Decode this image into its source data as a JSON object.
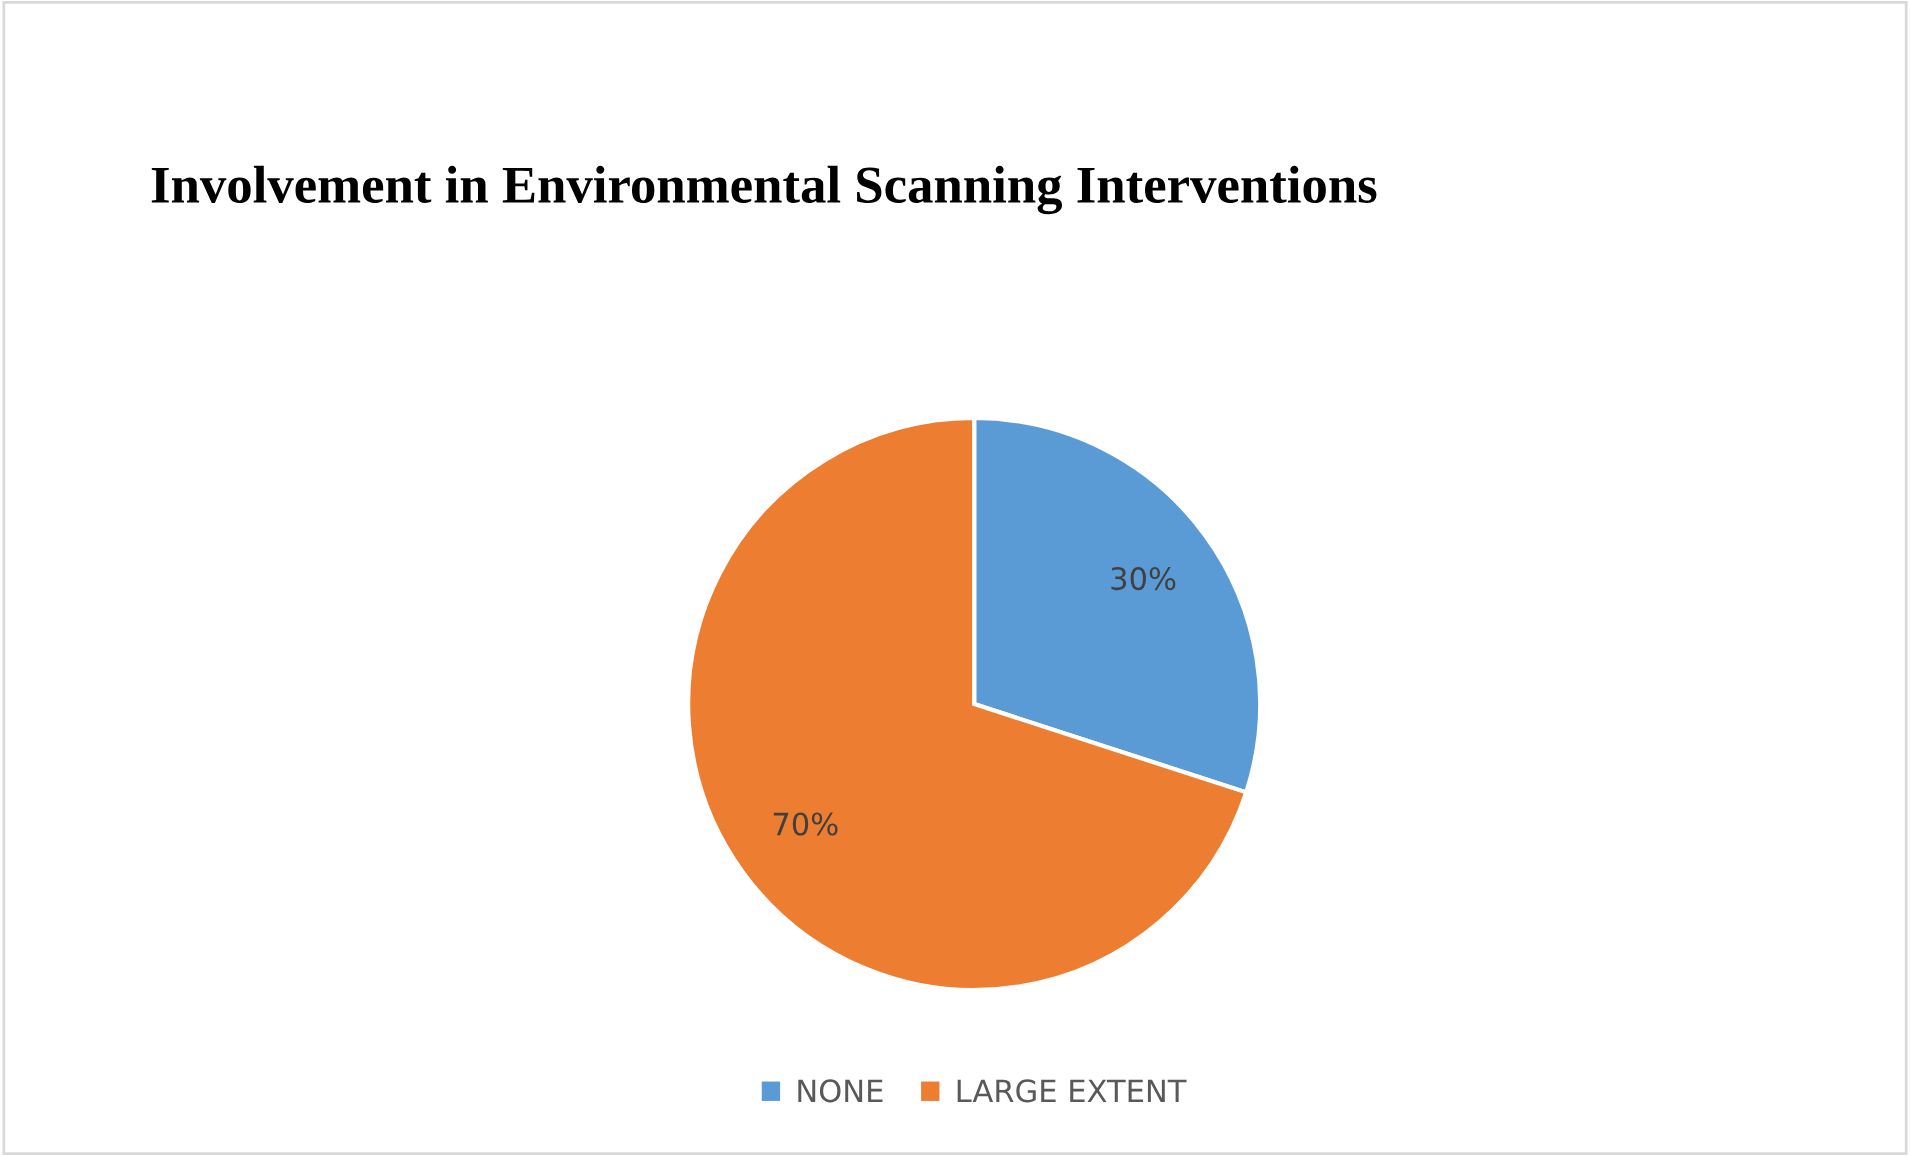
{
  "chart_data": {
    "type": "pie",
    "title": "Involvement in Environmental Scanning Interventions",
    "categories": [
      "NONE",
      "LARGE EXTENT"
    ],
    "values": [
      30,
      70
    ],
    "colors": [
      "#5b9bd5",
      "#ed7d31"
    ],
    "value_labels": [
      "30%",
      "70%"
    ],
    "legend": "bottom"
  }
}
